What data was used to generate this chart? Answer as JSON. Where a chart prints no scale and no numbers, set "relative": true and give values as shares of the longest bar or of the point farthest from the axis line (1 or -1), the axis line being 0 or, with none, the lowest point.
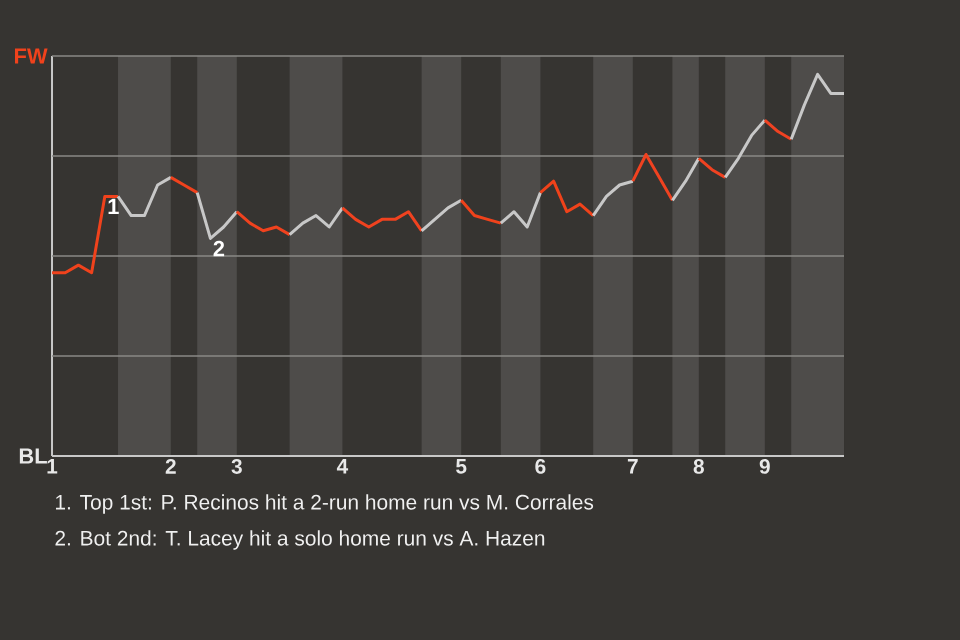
{
  "chart_data": {
    "type": "line",
    "relative": true,
    "tick_labels": "x",
    "grid": "y",
    "categories": [
      "1",
      null,
      null,
      null,
      null,
      null,
      null,
      null,
      null,
      "2",
      null,
      null,
      null,
      null,
      "3",
      null,
      null,
      null,
      null,
      null,
      null,
      null,
      "4",
      null,
      null,
      null,
      null,
      null,
      null,
      null,
      null,
      "5",
      null,
      null,
      null,
      null,
      null,
      "6",
      null,
      null,
      null,
      null,
      null,
      null,
      "7",
      null,
      null,
      null,
      null,
      "8",
      null,
      null,
      null,
      null,
      "9",
      null,
      null,
      null,
      null,
      null,
      null
    ],
    "series": [
      {
        "name": "FW",
        "color": "#f0421c",
        "values": [
          0.48,
          0.48,
          0.5,
          0.48,
          0.68,
          0.68,
          null,
          null,
          null,
          null,
          null,
          null,
          null,
          null,
          null,
          null,
          null,
          null,
          null,
          null,
          null,
          null,
          null,
          null,
          null,
          null,
          null,
          null,
          null,
          null,
          null,
          null,
          null,
          null,
          null,
          null,
          null,
          null,
          null,
          null,
          null,
          null,
          null,
          null,
          null,
          null,
          null,
          null,
          null,
          null,
          null,
          null,
          null,
          null,
          null,
          null,
          null,
          null,
          null,
          null,
          null
        ]
      },
      {
        "name": "BL",
        "color": "#c8c8c8",
        "values": [
          null,
          null,
          null,
          null,
          null,
          0.68,
          0.63,
          0.63,
          0.71,
          0.73,
          null,
          null,
          null,
          null,
          null,
          null,
          null,
          null,
          null,
          null,
          null,
          null,
          null,
          null,
          null,
          null,
          null,
          null,
          null,
          null,
          null,
          null,
          null,
          null,
          null,
          null,
          null,
          null,
          null,
          null,
          null,
          null,
          null,
          null,
          null,
          null,
          null,
          null,
          null,
          null,
          null,
          null,
          null,
          null,
          null,
          null,
          null,
          null,
          null,
          null,
          null
        ]
      },
      {
        "color": "#f0421d",
        "values": [
          null,
          null,
          null,
          null,
          null,
          null,
          null,
          null,
          null,
          0.73,
          0.71,
          0.69,
          null,
          null,
          null,
          null,
          null,
          null,
          null,
          null,
          null,
          null,
          null,
          null,
          null,
          null,
          null,
          null,
          null,
          null,
          null,
          null,
          null,
          null,
          null,
          null,
          null,
          null,
          null,
          null,
          null,
          null,
          null,
          null,
          null,
          null,
          null,
          null,
          null,
          null,
          null,
          null,
          null,
          null,
          null,
          null,
          null,
          null,
          null,
          null,
          null
        ]
      },
      {
        "color": "#c8c8c8",
        "values": [
          null,
          null,
          null,
          null,
          null,
          null,
          null,
          null,
          null,
          null,
          null,
          0.69,
          0.57,
          0.6,
          0.64,
          null,
          null,
          null,
          null,
          null,
          null,
          null,
          null,
          null,
          null,
          null,
          null,
          null,
          null,
          null,
          null,
          null,
          null,
          null,
          null,
          null,
          null,
          null,
          null,
          null,
          null,
          null,
          null,
          null,
          null,
          null,
          null,
          null,
          null,
          null,
          null,
          null,
          null,
          null,
          null,
          null,
          null,
          null,
          null,
          null,
          null
        ]
      },
      {
        "color": "#f0421e",
        "values": [
          null,
          null,
          null,
          null,
          null,
          null,
          null,
          null,
          null,
          null,
          null,
          null,
          null,
          null,
          0.64,
          0.61,
          0.59,
          0.6,
          0.58,
          null,
          null,
          null,
          null,
          null,
          null,
          null,
          null,
          null,
          null,
          null,
          null,
          null,
          null,
          null,
          null,
          null,
          null,
          null,
          null,
          null,
          null,
          null,
          null,
          null,
          null,
          null,
          null,
          null,
          null,
          null,
          null,
          null,
          null,
          null,
          null,
          null,
          null,
          null,
          null,
          null,
          null
        ]
      },
      {
        "color": "#c8c8c8",
        "values": [
          null,
          null,
          null,
          null,
          null,
          null,
          null,
          null,
          null,
          null,
          null,
          null,
          null,
          null,
          null,
          null,
          null,
          null,
          0.58,
          0.61,
          0.63,
          0.6,
          0.65,
          null,
          null,
          null,
          null,
          null,
          null,
          null,
          null,
          null,
          null,
          null,
          null,
          null,
          null,
          null,
          null,
          null,
          null,
          null,
          null,
          null,
          null,
          null,
          null,
          null,
          null,
          null,
          null,
          null,
          null,
          null,
          null,
          null,
          null,
          null,
          null,
          null,
          null
        ]
      },
      {
        "color": "#f0421f",
        "values": [
          null,
          null,
          null,
          null,
          null,
          null,
          null,
          null,
          null,
          null,
          null,
          null,
          null,
          null,
          null,
          null,
          null,
          null,
          null,
          null,
          null,
          null,
          0.65,
          0.62,
          0.6,
          0.62,
          0.62,
          0.64,
          0.59,
          null,
          null,
          null,
          null,
          null,
          null,
          null,
          null,
          null,
          null,
          null,
          null,
          null,
          null,
          null,
          null,
          null,
          null,
          null,
          null,
          null,
          null,
          null,
          null,
          null,
          null,
          null,
          null,
          null,
          null,
          null,
          null
        ]
      },
      {
        "color": "#c8c8c8",
        "values": [
          null,
          null,
          null,
          null,
          null,
          null,
          null,
          null,
          null,
          null,
          null,
          null,
          null,
          null,
          null,
          null,
          null,
          null,
          null,
          null,
          null,
          null,
          null,
          null,
          null,
          null,
          null,
          null,
          0.59,
          0.62,
          0.65,
          0.67,
          null,
          null,
          null,
          null,
          null,
          null,
          null,
          null,
          null,
          null,
          null,
          null,
          null,
          null,
          null,
          null,
          null,
          null,
          null,
          null,
          null,
          null,
          null,
          null,
          null,
          null,
          null,
          null,
          null
        ]
      },
      {
        "color": "#f0421b",
        "values": [
          null,
          null,
          null,
          null,
          null,
          null,
          null,
          null,
          null,
          null,
          null,
          null,
          null,
          null,
          null,
          null,
          null,
          null,
          null,
          null,
          null,
          null,
          null,
          null,
          null,
          null,
          null,
          null,
          null,
          null,
          null,
          0.67,
          0.63,
          0.62,
          0.61,
          null,
          null,
          null,
          null,
          null,
          null,
          null,
          null,
          null,
          null,
          null,
          null,
          null,
          null,
          null,
          null,
          null,
          null,
          null,
          null,
          null,
          null,
          null,
          null,
          null,
          null
        ]
      },
      {
        "color": "#c8c8c8",
        "values": [
          null,
          null,
          null,
          null,
          null,
          null,
          null,
          null,
          null,
          null,
          null,
          null,
          null,
          null,
          null,
          null,
          null,
          null,
          null,
          null,
          null,
          null,
          null,
          null,
          null,
          null,
          null,
          null,
          null,
          null,
          null,
          null,
          null,
          null,
          0.61,
          0.64,
          0.6,
          0.69,
          null,
          null,
          null,
          null,
          null,
          null,
          null,
          null,
          null,
          null,
          null,
          null,
          null,
          null,
          null,
          null,
          null,
          null,
          null,
          null,
          null,
          null,
          null
        ]
      },
      {
        "color": "#f0421a",
        "values": [
          null,
          null,
          null,
          null,
          null,
          null,
          null,
          null,
          null,
          null,
          null,
          null,
          null,
          null,
          null,
          null,
          null,
          null,
          null,
          null,
          null,
          null,
          null,
          null,
          null,
          null,
          null,
          null,
          null,
          null,
          null,
          null,
          null,
          null,
          null,
          null,
          null,
          0.69,
          0.72,
          0.64,
          0.66,
          0.63,
          null,
          null,
          null,
          null,
          null,
          null,
          null,
          null,
          null,
          null,
          null,
          null,
          null,
          null,
          null,
          null,
          null,
          null,
          null
        ]
      },
      {
        "color": "#c8c8c8",
        "values": [
          null,
          null,
          null,
          null,
          null,
          null,
          null,
          null,
          null,
          null,
          null,
          null,
          null,
          null,
          null,
          null,
          null,
          null,
          null,
          null,
          null,
          null,
          null,
          null,
          null,
          null,
          null,
          null,
          null,
          null,
          null,
          null,
          null,
          null,
          null,
          null,
          null,
          null,
          null,
          null,
          null,
          0.63,
          0.68,
          0.71,
          0.72,
          null,
          null,
          null,
          null,
          null,
          null,
          null,
          null,
          null,
          null,
          null,
          null,
          null,
          null,
          null,
          null
        ]
      },
      {
        "color": "#f04220",
        "values": [
          null,
          null,
          null,
          null,
          null,
          null,
          null,
          null,
          null,
          null,
          null,
          null,
          null,
          null,
          null,
          null,
          null,
          null,
          null,
          null,
          null,
          null,
          null,
          null,
          null,
          null,
          null,
          null,
          null,
          null,
          null,
          null,
          null,
          null,
          null,
          null,
          null,
          null,
          null,
          null,
          null,
          null,
          null,
          null,
          0.72,
          0.79,
          0.73,
          0.67,
          null,
          null,
          null,
          null,
          null,
          null,
          null,
          null,
          null,
          null,
          null,
          null,
          null
        ]
      },
      {
        "color": "#c8c8c8",
        "values": [
          null,
          null,
          null,
          null,
          null,
          null,
          null,
          null,
          null,
          null,
          null,
          null,
          null,
          null,
          null,
          null,
          null,
          null,
          null,
          null,
          null,
          null,
          null,
          null,
          null,
          null,
          null,
          null,
          null,
          null,
          null,
          null,
          null,
          null,
          null,
          null,
          null,
          null,
          null,
          null,
          null,
          null,
          null,
          null,
          null,
          null,
          null,
          0.67,
          0.72,
          0.78,
          null,
          null,
          null,
          null,
          null,
          null,
          null,
          null,
          null,
          null,
          null
        ]
      },
      {
        "color": "#f04221",
        "values": [
          null,
          null,
          null,
          null,
          null,
          null,
          null,
          null,
          null,
          null,
          null,
          null,
          null,
          null,
          null,
          null,
          null,
          null,
          null,
          null,
          null,
          null,
          null,
          null,
          null,
          null,
          null,
          null,
          null,
          null,
          null,
          null,
          null,
          null,
          null,
          null,
          null,
          null,
          null,
          null,
          null,
          null,
          null,
          null,
          null,
          null,
          null,
          null,
          null,
          0.78,
          0.75,
          0.73,
          null,
          null,
          null,
          null,
          null,
          null,
          null,
          null,
          null
        ]
      },
      {
        "color": "#c8c8c8",
        "values": [
          null,
          null,
          null,
          null,
          null,
          null,
          null,
          null,
          null,
          null,
          null,
          null,
          null,
          null,
          null,
          null,
          null,
          null,
          null,
          null,
          null,
          null,
          null,
          null,
          null,
          null,
          null,
          null,
          null,
          null,
          null,
          null,
          null,
          null,
          null,
          null,
          null,
          null,
          null,
          null,
          null,
          null,
          null,
          null,
          null,
          null,
          null,
          null,
          null,
          null,
          null,
          0.73,
          0.78,
          0.84,
          0.88,
          null,
          null,
          null,
          null,
          null,
          null
        ]
      },
      {
        "color": "#f04222",
        "values": [
          null,
          null,
          null,
          null,
          null,
          null,
          null,
          null,
          null,
          null,
          null,
          null,
          null,
          null,
          null,
          null,
          null,
          null,
          null,
          null,
          null,
          null,
          null,
          null,
          null,
          null,
          null,
          null,
          null,
          null,
          null,
          null,
          null,
          null,
          null,
          null,
          null,
          null,
          null,
          null,
          null,
          null,
          null,
          null,
          null,
          null,
          null,
          null,
          null,
          null,
          null,
          null,
          null,
          null,
          0.88,
          0.85,
          0.83,
          null,
          null,
          null,
          null
        ]
      },
      {
        "color": "#c8c8c8",
        "values": [
          null,
          null,
          null,
          null,
          null,
          null,
          null,
          null,
          null,
          null,
          null,
          null,
          null,
          null,
          null,
          null,
          null,
          null,
          null,
          null,
          null,
          null,
          null,
          null,
          null,
          null,
          null,
          null,
          null,
          null,
          null,
          null,
          null,
          null,
          null,
          null,
          null,
          null,
          null,
          null,
          null,
          null,
          null,
          null,
          null,
          null,
          null,
          null,
          null,
          null,
          null,
          null,
          null,
          null,
          null,
          null,
          0.83,
          0.92,
          1,
          0.95,
          0.95
        ]
      }
    ],
    "annotations": [
      {
        "text": "1",
        "y": 0.68
      },
      {
        "text": "2",
        "y": 0.57
      },
      "1. Top 1st: P. Recinos hit a 2-run home run vs M. Corrales",
      "2. Bot 2nd: T. Lacey hit a solo home run vs A. Hazen"
    ]
  }
}
